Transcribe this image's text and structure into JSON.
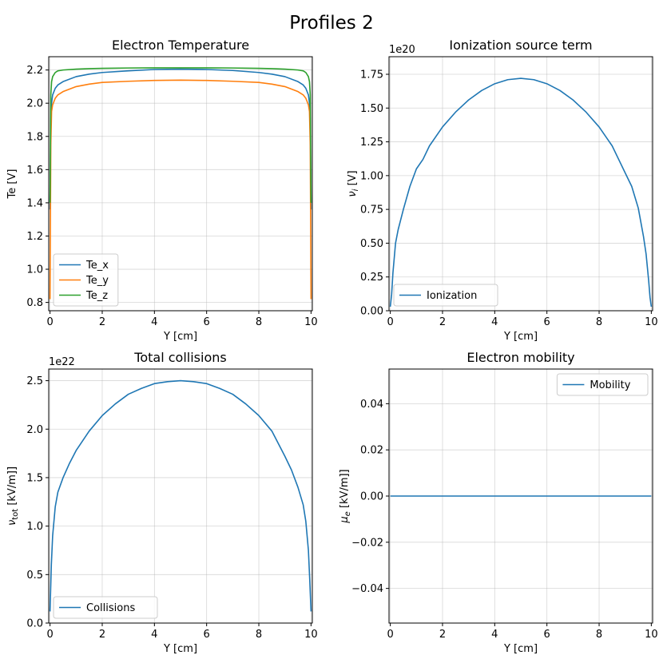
{
  "figure": {
    "suptitle": "Profiles 2"
  },
  "colors": {
    "blue": "#1f77b4",
    "orange": "#ff7f0e",
    "green": "#2ca02c"
  },
  "chart_data": [
    {
      "id": "te",
      "type": "line",
      "title": "Electron Temperature",
      "xlabel": "Y [cm]",
      "ylabel": "Te [V]",
      "xlim": [
        -0.05,
        10.05
      ],
      "ylim": [
        0.75,
        2.28
      ],
      "xticks": [
        0,
        2,
        4,
        6,
        8,
        10
      ],
      "xtick_labels": [
        "0",
        "2",
        "4",
        "6",
        "8",
        "10"
      ],
      "yticks": [
        0.8,
        1.0,
        1.2,
        1.4,
        1.6,
        1.8,
        2.0,
        2.2
      ],
      "ytick_labels": [
        "0.8",
        "1.0",
        "1.2",
        "1.4",
        "1.6",
        "1.8",
        "2.0",
        "2.2"
      ],
      "offset_text": "",
      "grid": true,
      "legend_position": "lower-left",
      "x": [
        0.0,
        0.03,
        0.06,
        0.1,
        0.2,
        0.3,
        0.5,
        1.0,
        1.5,
        2.0,
        3.0,
        4.0,
        5.0,
        6.0,
        7.0,
        8.0,
        8.5,
        9.0,
        9.5,
        9.7,
        9.8,
        9.9,
        9.94,
        9.97,
        10.0
      ],
      "series": [
        {
          "name": "Te_x",
          "color": "#1f77b4",
          "values": [
            1.36,
            1.9,
            2.0,
            2.05,
            2.09,
            2.11,
            2.13,
            2.16,
            2.175,
            2.185,
            2.195,
            2.203,
            2.205,
            2.203,
            2.197,
            2.185,
            2.175,
            2.16,
            2.13,
            2.11,
            2.09,
            2.05,
            2.0,
            1.9,
            1.36
          ]
        },
        {
          "name": "Te_y",
          "color": "#ff7f0e",
          "values": [
            0.82,
            1.75,
            1.95,
            1.99,
            2.03,
            2.05,
            2.07,
            2.1,
            2.115,
            2.125,
            2.132,
            2.137,
            2.139,
            2.137,
            2.132,
            2.125,
            2.115,
            2.1,
            2.07,
            2.05,
            2.03,
            1.99,
            1.95,
            1.75,
            0.82
          ]
        },
        {
          "name": "Te_z",
          "color": "#2ca02c",
          "values": [
            1.4,
            2.05,
            2.13,
            2.16,
            2.185,
            2.195,
            2.2,
            2.205,
            2.208,
            2.21,
            2.212,
            2.213,
            2.213,
            2.213,
            2.212,
            2.21,
            2.208,
            2.205,
            2.2,
            2.195,
            2.185,
            2.16,
            2.13,
            2.05,
            1.4
          ]
        }
      ]
    },
    {
      "id": "ion",
      "type": "line",
      "title": "Ionization source term",
      "xlabel": "Y [cm]",
      "ylabel": "ν_i [V]",
      "xlim": [
        -0.05,
        10.05
      ],
      "ylim": [
        0.0,
        1.88
      ],
      "xticks": [
        0,
        2,
        4,
        6,
        8,
        10
      ],
      "xtick_labels": [
        "0",
        "2",
        "4",
        "6",
        "8",
        "10"
      ],
      "yticks": [
        0.0,
        0.25,
        0.5,
        0.75,
        1.0,
        1.25,
        1.5,
        1.75
      ],
      "ytick_labels": [
        "0.00",
        "0.25",
        "0.50",
        "0.75",
        "1.00",
        "1.25",
        "1.50",
        "1.75"
      ],
      "offset_text": "1e20",
      "grid": true,
      "legend_position": "lower-left",
      "x": [
        0.0,
        0.05,
        0.1,
        0.2,
        0.3,
        0.5,
        0.75,
        1.0,
        1.25,
        1.5,
        2.0,
        2.5,
        3.0,
        3.5,
        4.0,
        4.5,
        5.0,
        5.5,
        6.0,
        6.5,
        7.0,
        7.5,
        8.0,
        8.5,
        8.75,
        9.0,
        9.25,
        9.5,
        9.7,
        9.8,
        9.9,
        9.95,
        10.0
      ],
      "series": [
        {
          "name": "Ionization",
          "color": "#1f77b4",
          "values": [
            0.03,
            0.12,
            0.28,
            0.5,
            0.6,
            0.75,
            0.92,
            1.05,
            1.12,
            1.22,
            1.36,
            1.47,
            1.56,
            1.63,
            1.68,
            1.71,
            1.72,
            1.71,
            1.68,
            1.63,
            1.56,
            1.47,
            1.36,
            1.22,
            1.12,
            1.02,
            0.92,
            0.76,
            0.55,
            0.42,
            0.22,
            0.1,
            0.03
          ]
        }
      ]
    },
    {
      "id": "coll",
      "type": "line",
      "title": "Total collisions",
      "xlabel": "Y [cm]",
      "ylabel": "ν_tot [kV/m]]",
      "xlim": [
        -0.05,
        10.05
      ],
      "ylim": [
        0.0,
        2.62
      ],
      "xticks": [
        0,
        2,
        4,
        6,
        8,
        10
      ],
      "xtick_labels": [
        "0",
        "2",
        "4",
        "6",
        "8",
        "10"
      ],
      "yticks": [
        0.0,
        0.5,
        1.0,
        1.5,
        2.0,
        2.5
      ],
      "ytick_labels": [
        "0.0",
        "0.5",
        "1.0",
        "1.5",
        "2.0",
        "2.5"
      ],
      "offset_text": "1e22",
      "grid": true,
      "legend_position": "lower-left",
      "x": [
        0.0,
        0.05,
        0.1,
        0.2,
        0.3,
        0.5,
        0.75,
        1.0,
        1.5,
        2.0,
        2.5,
        3.0,
        3.5,
        4.0,
        4.5,
        5.0,
        5.5,
        6.0,
        6.5,
        7.0,
        7.5,
        8.0,
        8.5,
        9.0,
        9.25,
        9.5,
        9.7,
        9.8,
        9.9,
        9.95,
        10.0
      ],
      "series": [
        {
          "name": "Collisions",
          "color": "#1f77b4",
          "values": [
            0.12,
            0.6,
            0.9,
            1.2,
            1.35,
            1.5,
            1.65,
            1.78,
            1.98,
            2.14,
            2.26,
            2.36,
            2.42,
            2.47,
            2.49,
            2.5,
            2.49,
            2.47,
            2.42,
            2.36,
            2.26,
            2.14,
            1.98,
            1.72,
            1.58,
            1.4,
            1.22,
            1.05,
            0.75,
            0.45,
            0.12
          ]
        }
      ]
    },
    {
      "id": "mob",
      "type": "line",
      "title": "Electron mobility",
      "xlabel": "Y [cm]",
      "ylabel": "μ_e [kV/m]]",
      "xlim": [
        -0.05,
        10.05
      ],
      "ylim": [
        -0.055,
        0.055
      ],
      "xticks": [
        0,
        2,
        4,
        6,
        8,
        10
      ],
      "xtick_labels": [
        "0",
        "2",
        "4",
        "6",
        "8",
        "10"
      ],
      "yticks": [
        -0.04,
        -0.02,
        0.0,
        0.02,
        0.04
      ],
      "ytick_labels": [
        "−0.04",
        "−0.02",
        "0.00",
        "0.02",
        "0.04"
      ],
      "offset_text": "",
      "grid": true,
      "legend_position": "upper-right",
      "x": [
        0.0,
        10.0
      ],
      "series": [
        {
          "name": "Mobility",
          "color": "#1f77b4",
          "values": [
            0.0,
            0.0
          ]
        }
      ]
    }
  ]
}
